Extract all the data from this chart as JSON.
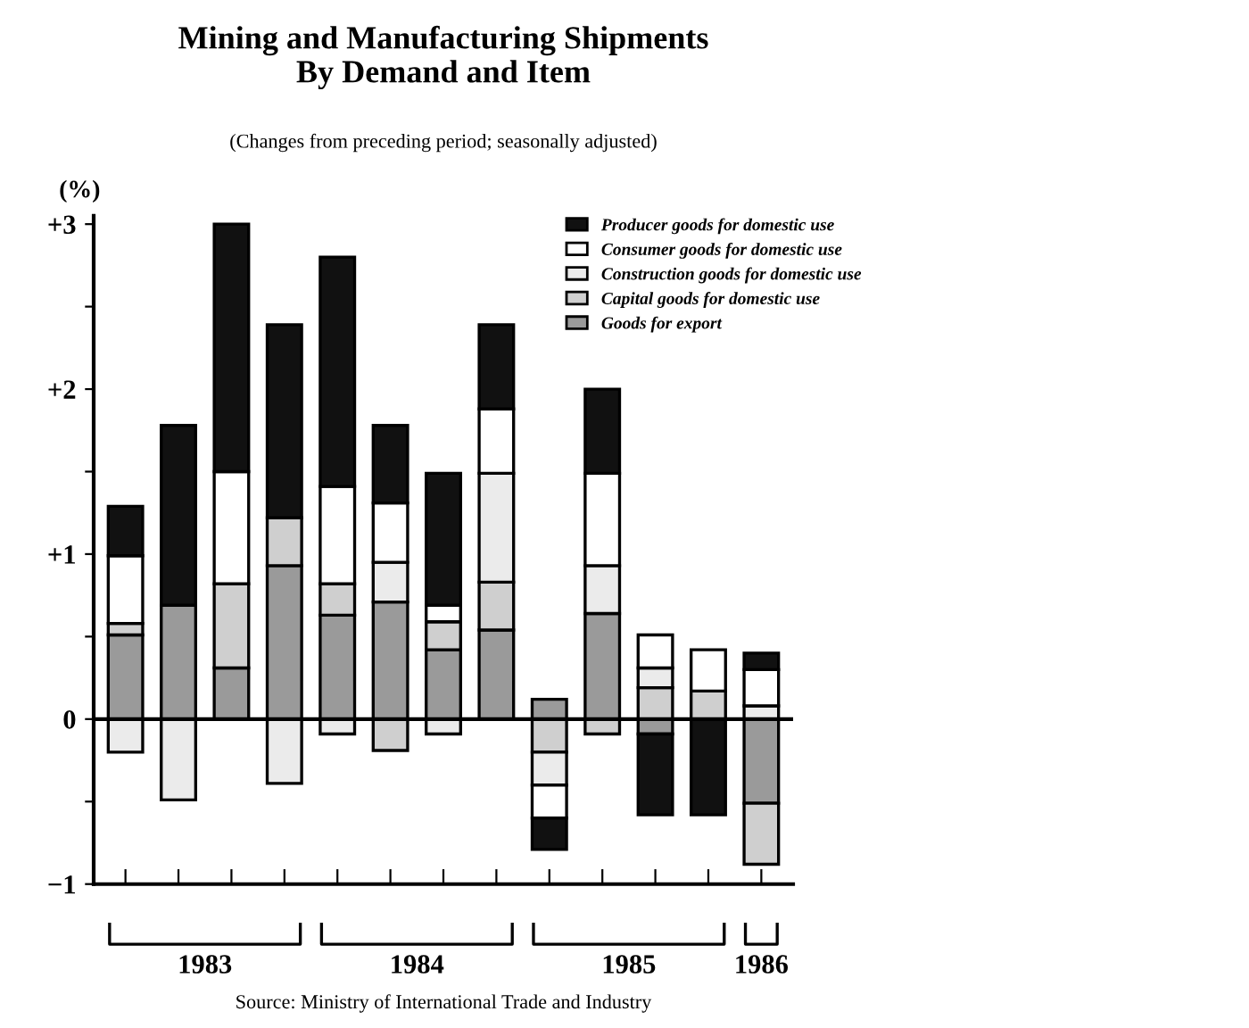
{
  "chart_data": {
    "type": "bar",
    "stacked": true,
    "title": "Mining and Manufacturing Shipments\nBy Demand and Item",
    "subtitle": "(Changes from preceding period; seasonally adjusted)",
    "ylabel": "(%)",
    "categories": [
      null,
      null,
      null,
      null,
      null,
      null,
      null,
      null,
      null,
      null,
      null,
      null,
      null
    ],
    "series": [
      {
        "name": "Goods for export",
        "color": "#9a9a9a",
        "values": [
          0.51,
          0.69,
          0.31,
          0.93,
          0.63,
          0.71,
          0.42,
          0.54,
          0.12,
          0.64,
          -0.09,
          null,
          -0.51
        ]
      },
      {
        "name": "Capital goods for domestic use",
        "color": "#cfcfcf",
        "values": [
          0.07,
          null,
          0.51,
          0.29,
          0.19,
          -0.19,
          0.17,
          0.29,
          -0.2,
          -0.09,
          0.19,
          0.17,
          -0.37
        ]
      },
      {
        "name": "Construction goods for domestic use",
        "color": "#ebebeb",
        "values": [
          -0.2,
          -0.49,
          null,
          -0.39,
          -0.09,
          0.24,
          -0.09,
          0.66,
          -0.2,
          0.29,
          0.12,
          null,
          0.08
        ]
      },
      {
        "name": "Consumer goods for domestic use",
        "color": "#ffffff",
        "values": [
          0.41,
          null,
          0.68,
          null,
          0.59,
          0.36,
          0.1,
          0.39,
          -0.2,
          0.56,
          0.2,
          0.25,
          0.22
        ]
      },
      {
        "name": "Producer goods for domestic use",
        "color": "#111111",
        "values": [
          0.3,
          1.09,
          1.5,
          1.17,
          1.39,
          0.47,
          0.8,
          0.51,
          -0.19,
          0.51,
          -0.49,
          -0.58,
          0.1
        ]
      }
    ],
    "ylim": [
      -1,
      3.05
    ],
    "yticks": [
      {
        "value": -1,
        "label": "−1"
      },
      {
        "value": -0.5,
        "label": null
      },
      0,
      {
        "value": 0.5,
        "label": null
      },
      {
        "value": 1,
        "label": "+1"
      },
      {
        "value": 1.5,
        "label": null
      },
      {
        "value": 2,
        "label": "+2"
      },
      {
        "value": 2.5,
        "label": null
      },
      {
        "value": 3,
        "label": "+3"
      }
    ],
    "ref_lines": [
      {
        "axis": "y",
        "value": 0,
        "color": "#000000"
      }
    ],
    "annotations": [
      "1983",
      "1984",
      "1985",
      "1986",
      "Source: Ministry of International Trade and Industry"
    ],
    "legend": "top right",
    "grid": false
  }
}
